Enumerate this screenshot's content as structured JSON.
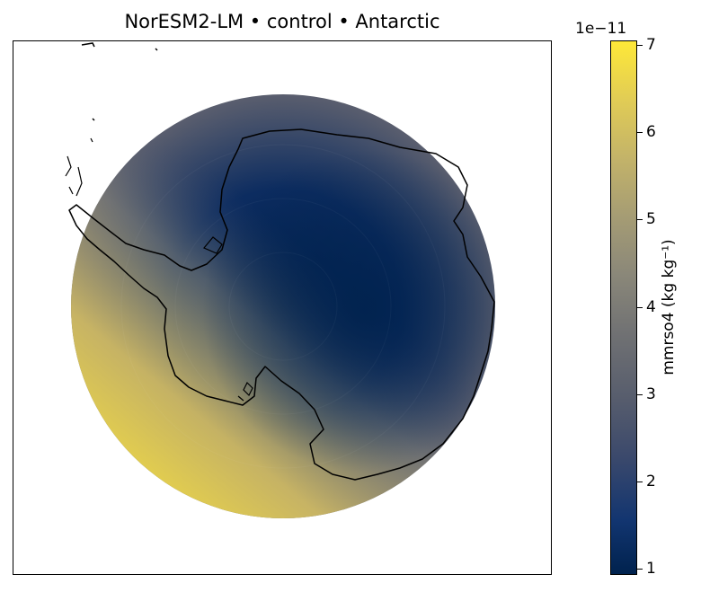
{
  "title": "NorESM2-LM • control • Antarctic",
  "colorbar": {
    "label": "mmrso4 (kg kg⁻¹)",
    "offset_text": "1e−11",
    "ticks": [
      "1",
      "2",
      "3",
      "4",
      "5",
      "6",
      "7"
    ],
    "min": 0.93,
    "max": 7.05,
    "colormap": "cividis"
  },
  "map": {
    "projection": "south polar stereographic",
    "region": "Antarctic",
    "coastline_color": "#000000"
  },
  "colors": {
    "low": "#00224e",
    "mid": "#707173",
    "high": "#fee838"
  }
}
